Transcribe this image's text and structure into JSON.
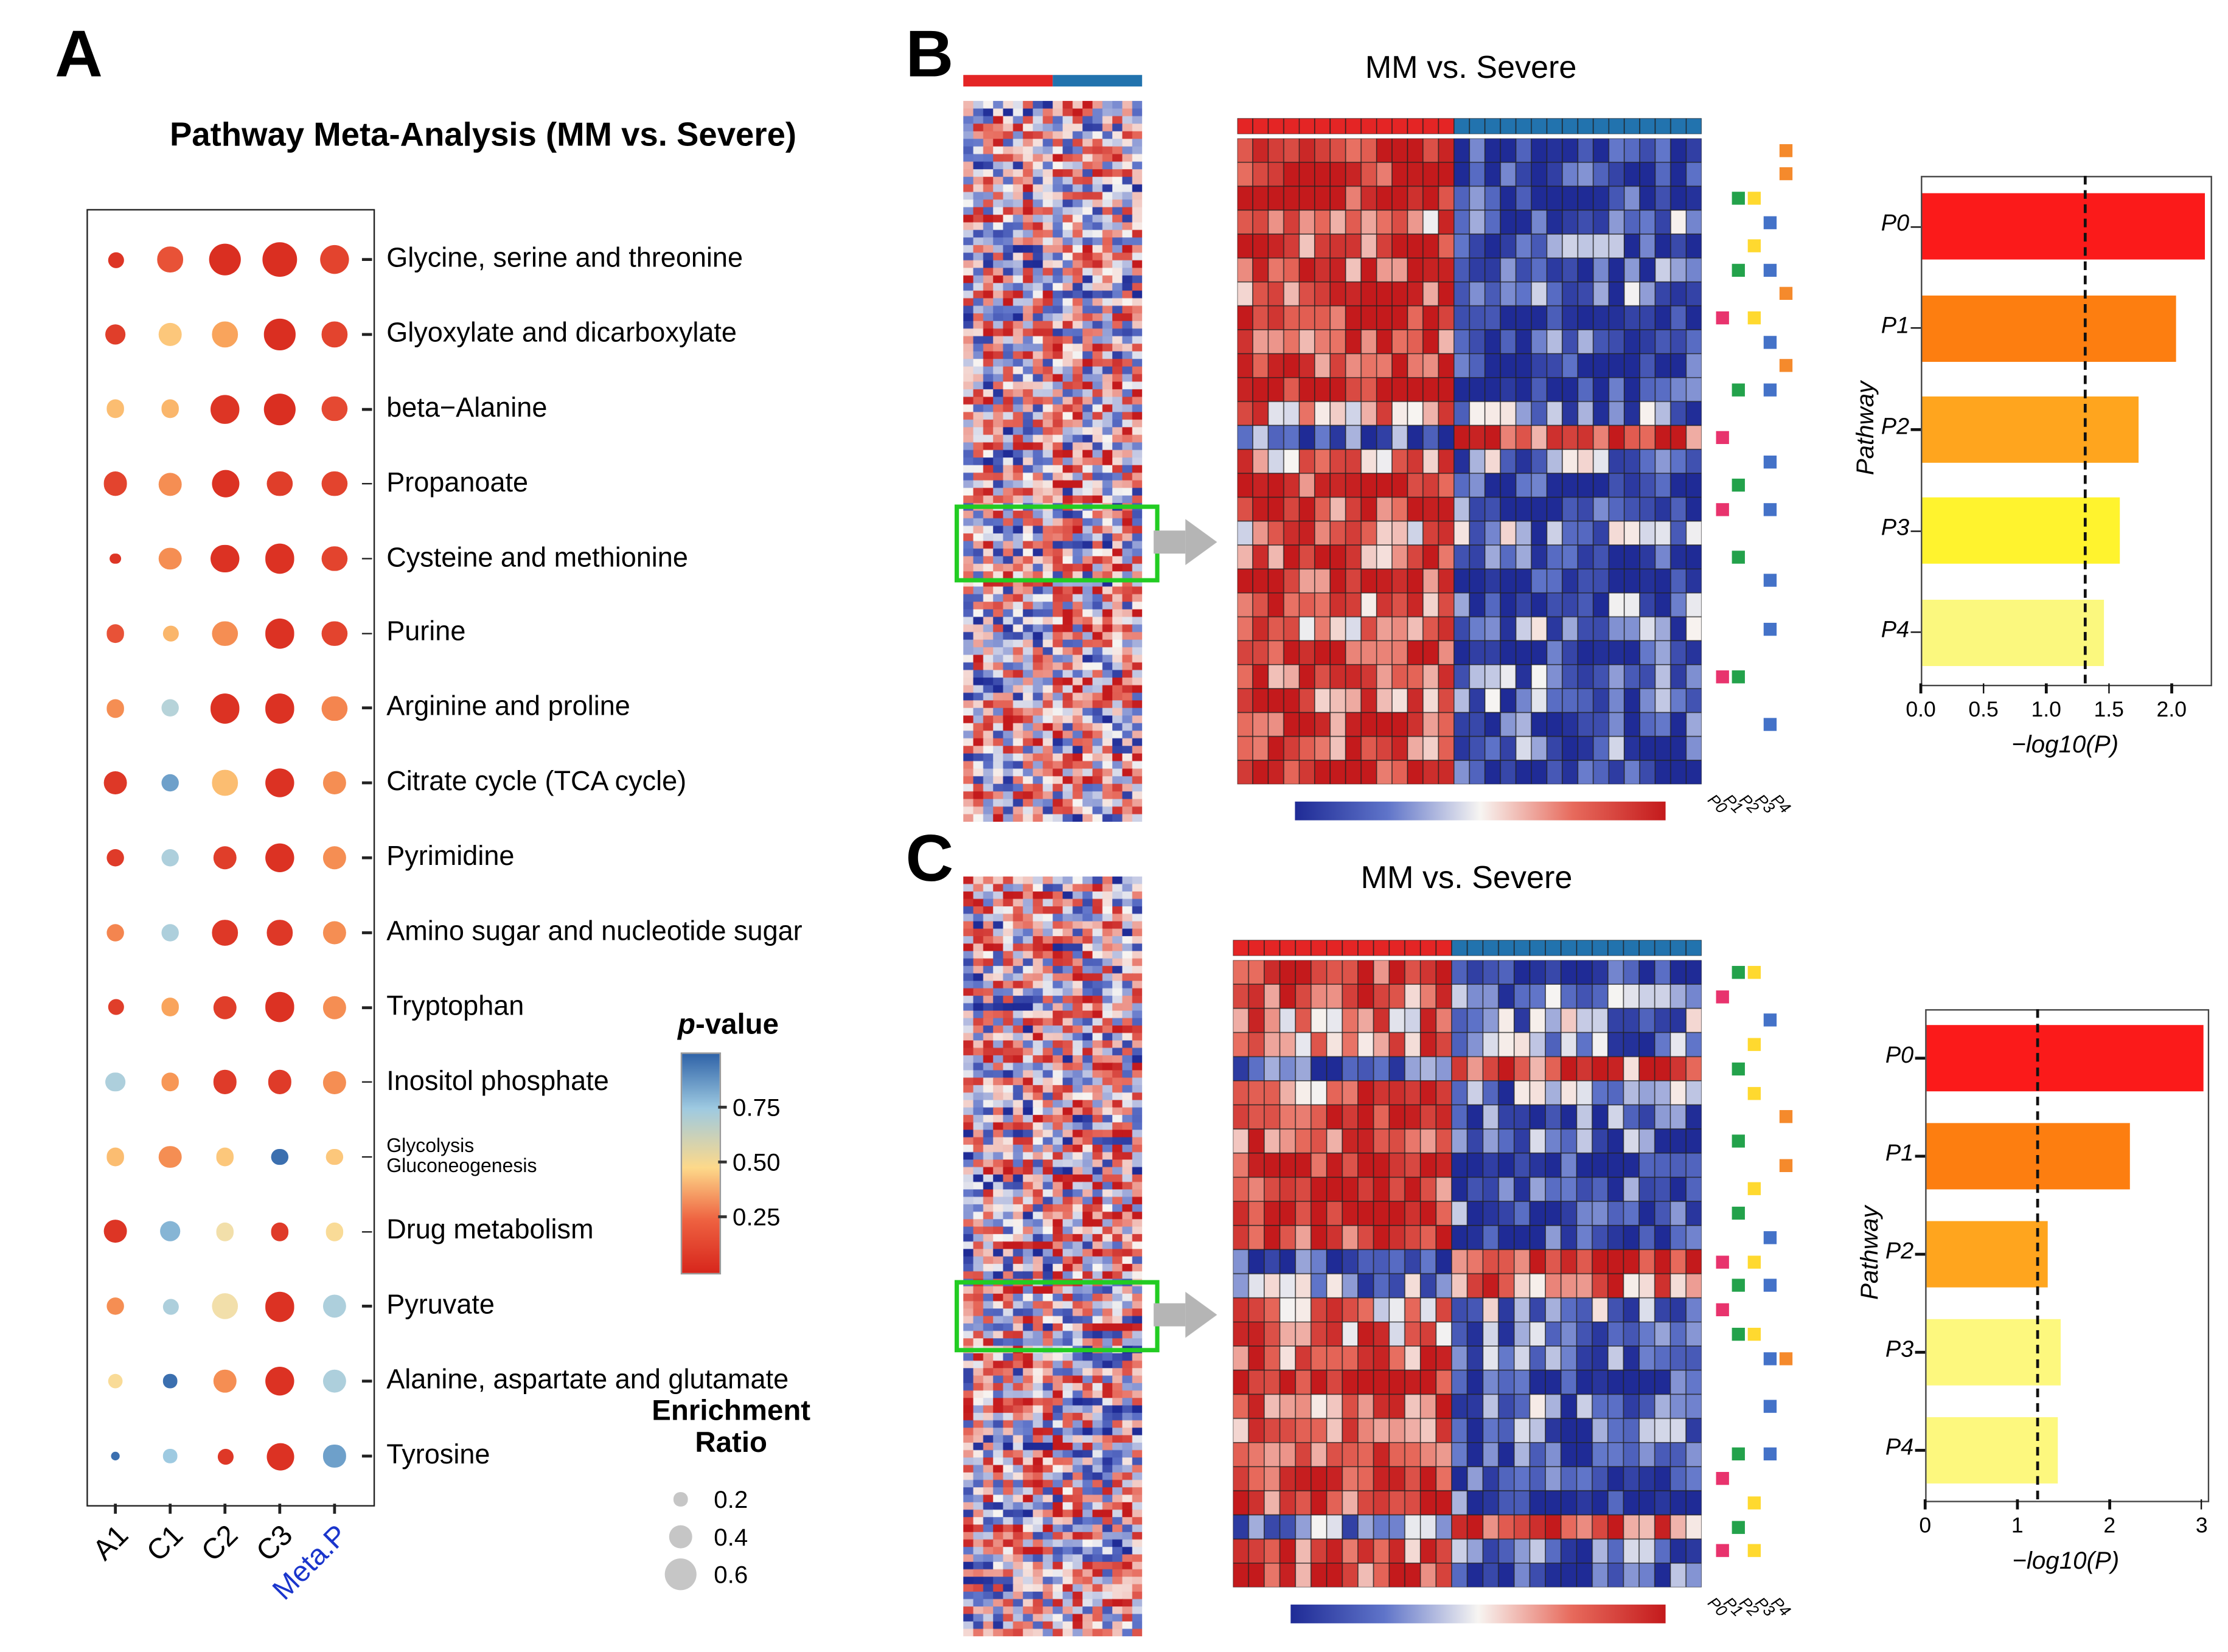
{
  "panels": {
    "A": {
      "letter": "A",
      "title": "Pathway Meta-Analysis (MM vs. Severe)"
    },
    "B": {
      "letter": "B",
      "title": "MM vs. Severe"
    },
    "C": {
      "letter": "C",
      "title": "MM vs. Severe"
    }
  },
  "chart_data": [
    {
      "id": "A",
      "type": "scatter",
      "subtype": "dotplot",
      "title": "Pathway Meta-Analysis (MM vs. Severe)",
      "x_categories": [
        "A1",
        "C1",
        "C2",
        "C3",
        "Meta.P"
      ],
      "meta_p_color": "#1a35cc",
      "y_categories": [
        "Glycine, serine and threonine",
        "Glyoxylate and dicarboxylate",
        "beta−Alanine",
        "Propanoate",
        "Cysteine and methionine",
        "Purine",
        "Arginine and proline",
        "Citrate cycle (TCA cycle)",
        "Pyrimidine",
        "Amino sugar and nucleotide sugar",
        "Tryptophan",
        "Inositol phosphate",
        "Glycolysis\nGluconeogenesis",
        "Drug metabolism",
        "Pyruvate",
        "Alanine, aspartate and glutamate",
        "Tyrosine"
      ],
      "p_values": [
        [
          0.05,
          0.15,
          0.03,
          0.03,
          0.1
        ],
        [
          0.08,
          0.45,
          0.35,
          0.03,
          0.1
        ],
        [
          0.42,
          0.4,
          0.05,
          0.03,
          0.12
        ],
        [
          0.1,
          0.3,
          0.04,
          0.08,
          0.1
        ],
        [
          0.05,
          0.3,
          0.04,
          0.04,
          0.1
        ],
        [
          0.15,
          0.4,
          0.3,
          0.04,
          0.1
        ],
        [
          0.3,
          0.7,
          0.04,
          0.04,
          0.28
        ],
        [
          0.06,
          0.85,
          0.42,
          0.04,
          0.3
        ],
        [
          0.07,
          0.72,
          0.08,
          0.04,
          0.3
        ],
        [
          0.28,
          0.72,
          0.06,
          0.06,
          0.3
        ],
        [
          0.08,
          0.35,
          0.08,
          0.04,
          0.3
        ],
        [
          0.72,
          0.32,
          0.07,
          0.07,
          0.3
        ],
        [
          0.42,
          0.3,
          0.45,
          0.97,
          0.45
        ],
        [
          0.05,
          0.8,
          0.55,
          0.07,
          0.52
        ],
        [
          0.3,
          0.72,
          0.55,
          0.04,
          0.72
        ],
        [
          0.52,
          0.97,
          0.3,
          0.04,
          0.72
        ],
        [
          0.97,
          0.75,
          0.06,
          0.04,
          0.85
        ]
      ],
      "enrichment_ratio": [
        [
          0.25,
          0.45,
          0.6,
          0.65,
          0.55
        ],
        [
          0.35,
          0.4,
          0.45,
          0.58,
          0.45
        ],
        [
          0.3,
          0.3,
          0.52,
          0.6,
          0.45
        ],
        [
          0.42,
          0.4,
          0.5,
          0.45,
          0.45
        ],
        [
          0.15,
          0.4,
          0.52,
          0.55,
          0.45
        ],
        [
          0.3,
          0.25,
          0.45,
          0.55,
          0.45
        ],
        [
          0.3,
          0.28,
          0.55,
          0.55,
          0.45
        ],
        [
          0.4,
          0.3,
          0.45,
          0.55,
          0.4
        ],
        [
          0.3,
          0.3,
          0.42,
          0.55,
          0.4
        ],
        [
          0.3,
          0.28,
          0.45,
          0.45,
          0.4
        ],
        [
          0.25,
          0.3,
          0.42,
          0.55,
          0.4
        ],
        [
          0.32,
          0.3,
          0.42,
          0.42,
          0.4
        ],
        [
          0.3,
          0.38,
          0.3,
          0.28,
          0.28
        ],
        [
          0.4,
          0.35,
          0.3,
          0.3,
          0.3
        ],
        [
          0.28,
          0.25,
          0.48,
          0.55,
          0.42
        ],
        [
          0.22,
          0.2,
          0.4,
          0.55,
          0.42
        ],
        [
          0.1,
          0.2,
          0.25,
          0.5,
          0.38
        ]
      ],
      "legend": {
        "color_title": "p-value",
        "color_ticks": [
          "0.75",
          "0.50",
          "0.25"
        ],
        "size_title_lines": [
          "Enrichment",
          "Ratio"
        ],
        "size_ticks": [
          "0.2",
          "0.4",
          "0.6"
        ],
        "size_values": [
          0.2,
          0.4,
          0.6
        ]
      }
    },
    {
      "id": "B",
      "type": "heatmap",
      "title": "MM vs. Severe",
      "group_colors": {
        "left": "#e42525",
        "right": "#2273ae"
      },
      "heat_palette": {
        "low": "#1f2b96",
        "mid": "#f7f5f2",
        "high": "#c41a1c"
      },
      "strip": {
        "rows": 95,
        "cols": 18,
        "seed": 101,
        "split": 9,
        "has_topbar": true
      },
      "main": {
        "rows": 27,
        "cols": 30,
        "seed": 202,
        "split": 14
      },
      "annotation_labels": [
        "P0",
        "P1",
        "P2",
        "P3",
        "P4"
      ],
      "annotation_colors": {
        "pink": "#e8336d",
        "green": "#23a24b",
        "yellow": "#ffd92f",
        "blue": "#4472c8",
        "orange": "#f58a2c"
      },
      "annotations": [
        [
          0,
          4,
          "orange"
        ],
        [
          1,
          4,
          "orange"
        ],
        [
          2,
          1,
          "green"
        ],
        [
          2,
          2,
          "yellow"
        ],
        [
          3,
          3,
          "blue"
        ],
        [
          4,
          2,
          "yellow"
        ],
        [
          5,
          1,
          "green"
        ],
        [
          5,
          3,
          "blue"
        ],
        [
          6,
          4,
          "orange"
        ],
        [
          7,
          0,
          "pink"
        ],
        [
          7,
          2,
          "yellow"
        ],
        [
          8,
          3,
          "blue"
        ],
        [
          9,
          4,
          "orange"
        ],
        [
          10,
          1,
          "green"
        ],
        [
          10,
          3,
          "blue"
        ],
        [
          12,
          0,
          "pink"
        ],
        [
          13,
          3,
          "blue"
        ],
        [
          14,
          1,
          "green"
        ],
        [
          15,
          0,
          "pink"
        ],
        [
          15,
          3,
          "blue"
        ],
        [
          17,
          1,
          "green"
        ],
        [
          18,
          3,
          "blue"
        ],
        [
          20,
          3,
          "blue"
        ],
        [
          22,
          0,
          "pink"
        ],
        [
          22,
          1,
          "green"
        ],
        [
          24,
          3,
          "blue"
        ]
      ],
      "bar": {
        "categories": [
          "P0",
          "P1",
          "P2",
          "P3",
          "P4"
        ],
        "values": [
          2.25,
          2.02,
          1.72,
          1.58,
          1.45
        ],
        "colors": [
          "#fb1a1a",
          "#fd7e10",
          "#ffa51e",
          "#fff32e",
          "#fbf87e"
        ],
        "threshold": 1.3,
        "xmax": 2.3,
        "xticks": [
          "0.0",
          "0.5",
          "1.0",
          "1.5",
          "2.0"
        ],
        "xtick_vals": [
          0,
          0.5,
          1,
          1.5,
          2
        ],
        "xlabel": "−log10(P)",
        "ylabel": "Pathway"
      }
    },
    {
      "id": "C",
      "type": "heatmap",
      "title": "MM vs. Severe",
      "group_colors": {
        "left": "#e42525",
        "right": "#2273ae"
      },
      "heat_palette": {
        "low": "#1f2b96",
        "mid": "#f7f5f2",
        "high": "#c41a1c"
      },
      "strip": {
        "rows": 102,
        "cols": 18,
        "seed": 303,
        "split": 9,
        "has_topbar": false
      },
      "main": {
        "rows": 26,
        "cols": 30,
        "seed": 404,
        "split": 14
      },
      "annotation_labels": [
        "P0",
        "P1",
        "P2",
        "P3",
        "P4"
      ],
      "annotation_colors": {
        "pink": "#e8336d",
        "green": "#23a24b",
        "yellow": "#ffd92f",
        "blue": "#4472c8",
        "orange": "#f58a2c"
      },
      "annotations": [
        [
          0,
          1,
          "green"
        ],
        [
          0,
          2,
          "yellow"
        ],
        [
          1,
          0,
          "pink"
        ],
        [
          2,
          3,
          "blue"
        ],
        [
          3,
          2,
          "yellow"
        ],
        [
          4,
          1,
          "green"
        ],
        [
          5,
          2,
          "yellow"
        ],
        [
          6,
          4,
          "orange"
        ],
        [
          7,
          1,
          "green"
        ],
        [
          8,
          4,
          "orange"
        ],
        [
          9,
          2,
          "yellow"
        ],
        [
          10,
          1,
          "green"
        ],
        [
          11,
          3,
          "blue"
        ],
        [
          12,
          0,
          "pink"
        ],
        [
          12,
          2,
          "yellow"
        ],
        [
          13,
          1,
          "green"
        ],
        [
          13,
          3,
          "blue"
        ],
        [
          14,
          0,
          "pink"
        ],
        [
          15,
          1,
          "green"
        ],
        [
          15,
          2,
          "yellow"
        ],
        [
          16,
          3,
          "blue"
        ],
        [
          16,
          4,
          "orange"
        ],
        [
          18,
          3,
          "blue"
        ],
        [
          20,
          1,
          "green"
        ],
        [
          20,
          3,
          "blue"
        ],
        [
          21,
          0,
          "pink"
        ],
        [
          22,
          2,
          "yellow"
        ],
        [
          23,
          1,
          "green"
        ],
        [
          24,
          0,
          "pink"
        ],
        [
          24,
          2,
          "yellow"
        ]
      ],
      "bar": {
        "categories": [
          "P0",
          "P1",
          "P2",
          "P3",
          "P4"
        ],
        "values": [
          3.0,
          2.2,
          1.32,
          1.45,
          1.42
        ],
        "colors": [
          "#fb1a1a",
          "#fd7e10",
          "#ffa51e",
          "#fdf87e",
          "#fdf87e"
        ],
        "threshold": 1.2,
        "xmax": 3.05,
        "xticks": [
          "0",
          "1",
          "2",
          "3"
        ],
        "xtick_vals": [
          0,
          1,
          2,
          3
        ],
        "xlabel": "−log10(P)",
        "ylabel": "Pathway"
      }
    }
  ]
}
